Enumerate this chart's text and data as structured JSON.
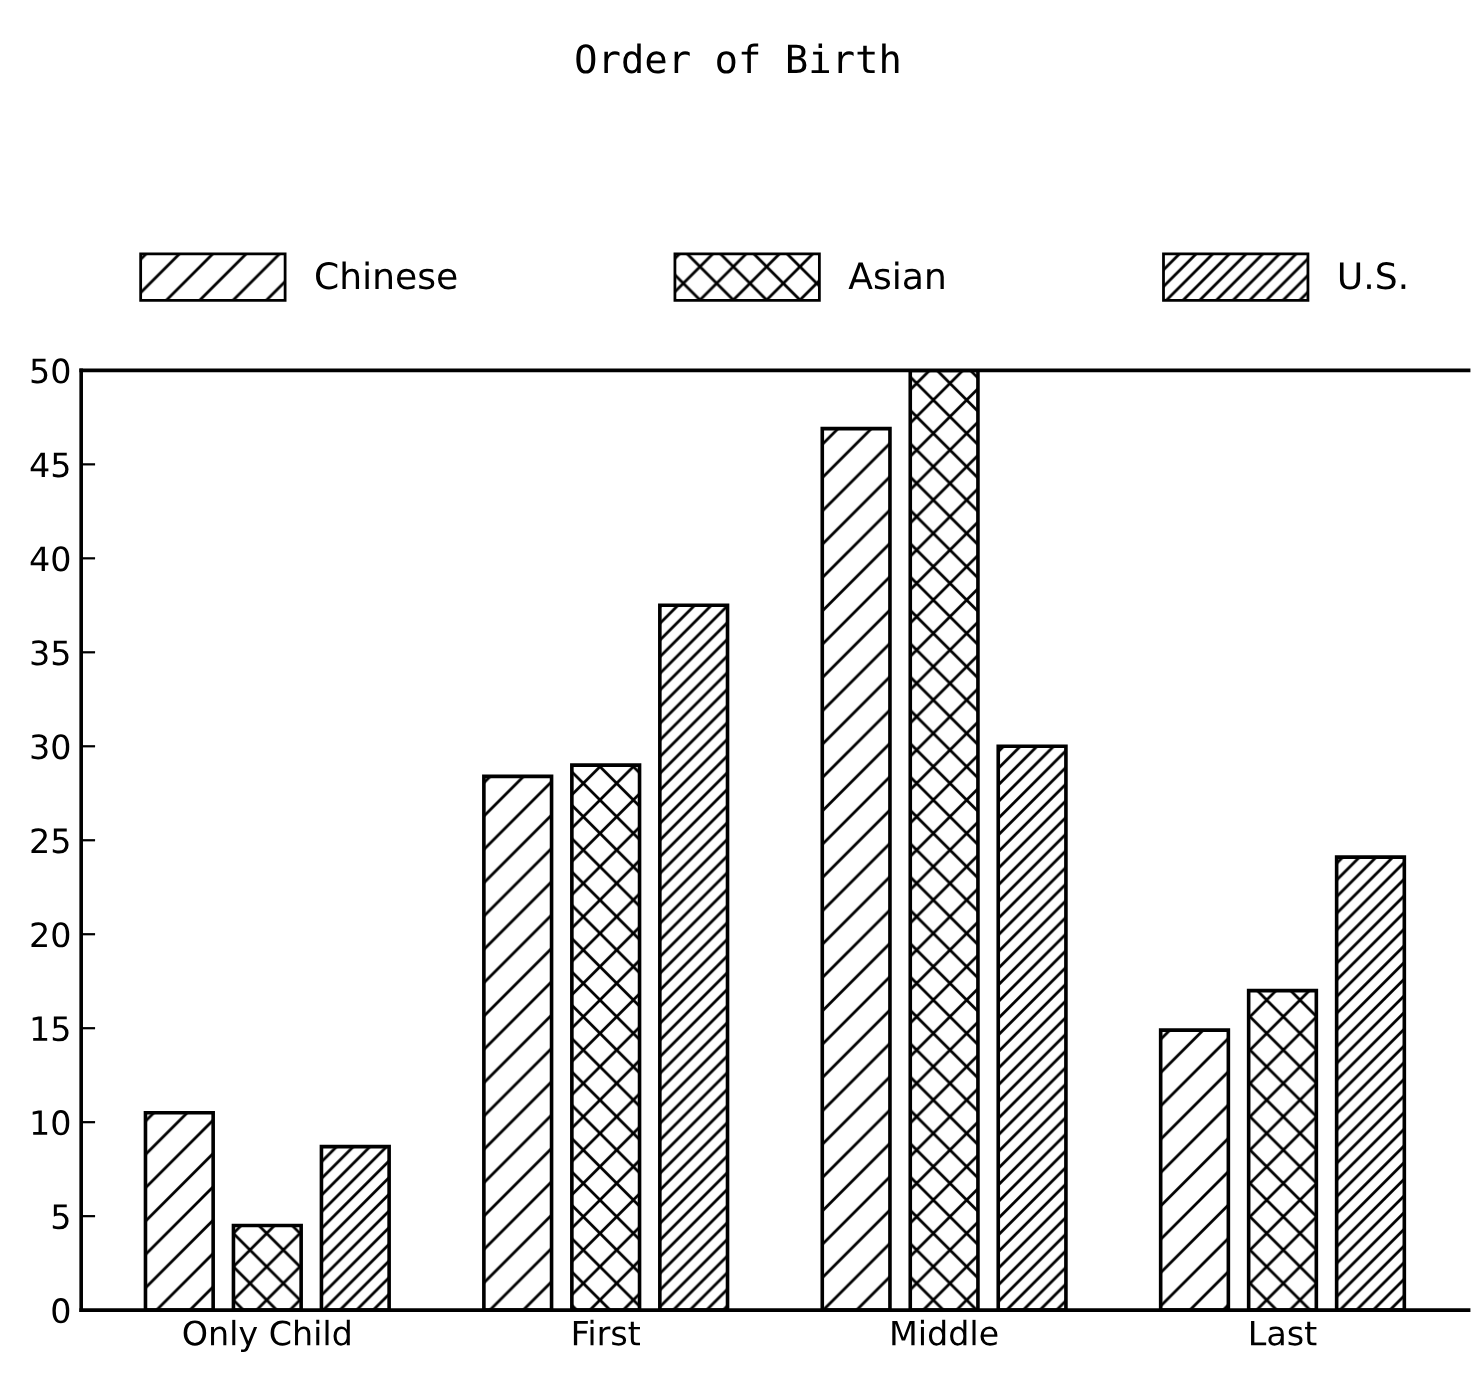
{
  "chart_data": {
    "type": "bar",
    "title": "Order of Birth",
    "categories": [
      "Only Child",
      "First",
      "Middle",
      "Last"
    ],
    "series": [
      {
        "name": "Chinese",
        "color": "#000000",
        "values": [
          10.5,
          28.4,
          46.9,
          14.9
        ]
      },
      {
        "name": "Asian",
        "color": "#000000",
        "values": [
          4.5,
          29,
          50,
          17
        ]
      },
      {
        "name": "U.S.",
        "color": "#000000",
        "values": [
          8.7,
          37.5,
          30,
          24.1
        ]
      }
    ],
    "ylim": [
      0,
      50
    ],
    "yticks": [
      0,
      5,
      10,
      15,
      20,
      25,
      30,
      35,
      40,
      45,
      50
    ],
    "legend": "top",
    "grid": false
  }
}
